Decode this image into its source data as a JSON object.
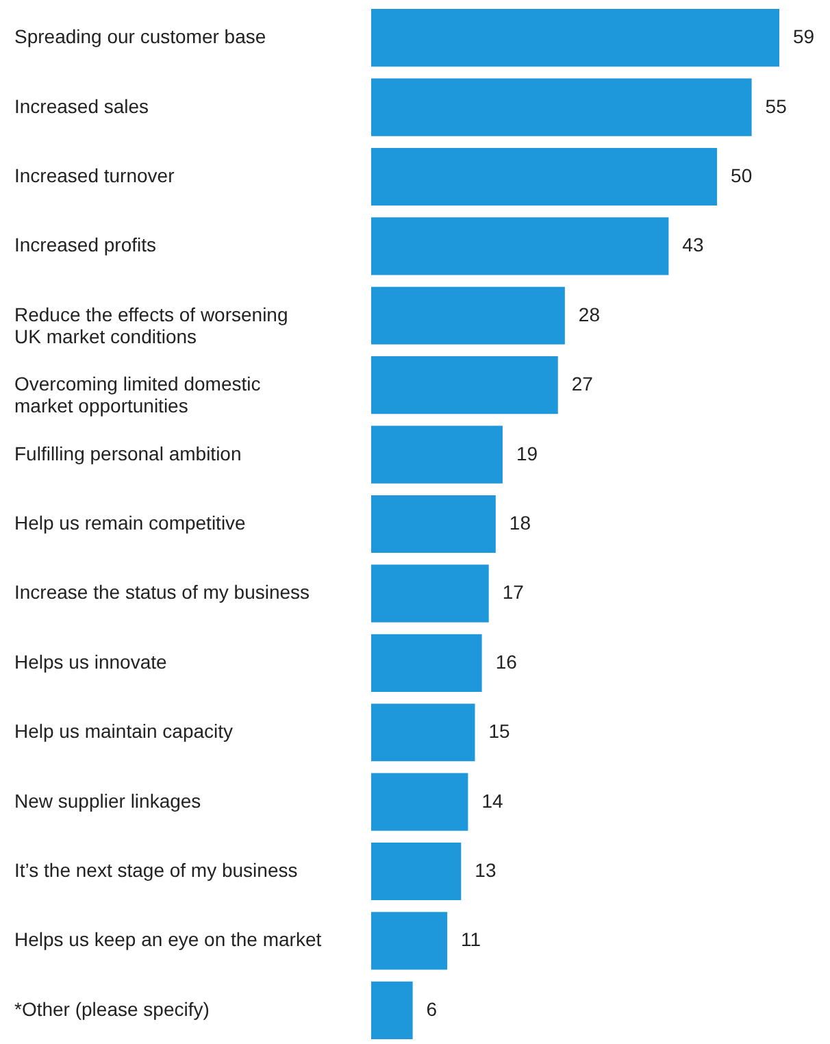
{
  "chart_data": {
    "type": "bar",
    "orientation": "horizontal",
    "data_labels": true,
    "color": "#1f98db",
    "categories": [
      "Spreading our customer base",
      "Increased sales",
      "Increased turnover",
      "Increased profits",
      "Reduce the effects of worsening\nUK market conditions",
      "Overcoming limited domestic\nmarket opportunities",
      "Fulfilling personal ambition",
      "Help us remain competitive",
      "Increase the status of my business",
      "Helps us innovate",
      "Help us maintain capacity",
      "New supplier linkages",
      "It’s the next stage of my business",
      "Helps us keep an eye on the market",
      "*Other (please specify)"
    ],
    "values": [
      59,
      55,
      50,
      43,
      28,
      27,
      19,
      18,
      17,
      16,
      15,
      14,
      13,
      11,
      6
    ]
  }
}
